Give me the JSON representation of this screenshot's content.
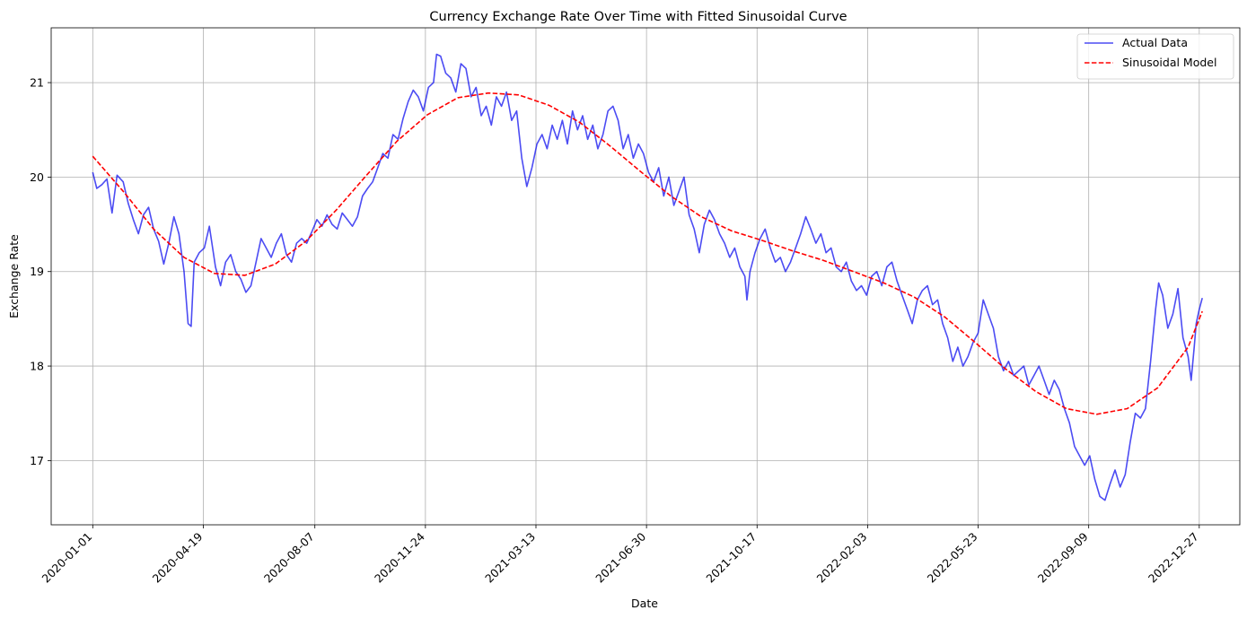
{
  "chart_data": {
    "type": "line",
    "title": "Currency Exchange Rate Over Time with Fitted Sinusoidal Curve",
    "xlabel": "Date",
    "ylabel": "Exchange Rate",
    "x_type": "date",
    "xlim": [
      "2019-11-21",
      "2023-02-05"
    ],
    "ylim": [
      16.32,
      21.58
    ],
    "x_ticks": [
      "2020-01-01",
      "2020-04-19",
      "2020-08-07",
      "2020-11-24",
      "2021-03-13",
      "2021-06-30",
      "2021-10-17",
      "2022-02-03",
      "2022-05-23",
      "2022-09-09",
      "2022-12-27"
    ],
    "y_ticks": [
      17,
      18,
      19,
      20,
      21
    ],
    "grid": true,
    "legend": "top-right",
    "series": [
      {
        "name": "Actual Data",
        "style": "solid",
        "color": "#0000ee",
        "opacity": 0.7,
        "points": [
          [
            "2020-01-01",
            20.05
          ],
          [
            "2020-01-05",
            19.88
          ],
          [
            "2020-01-10",
            19.92
          ],
          [
            "2020-01-15",
            19.98
          ],
          [
            "2020-01-20",
            19.62
          ],
          [
            "2020-01-25",
            20.02
          ],
          [
            "2020-01-31",
            19.95
          ],
          [
            "2020-02-05",
            19.72
          ],
          [
            "2020-02-10",
            19.55
          ],
          [
            "2020-02-15",
            19.4
          ],
          [
            "2020-02-20",
            19.6
          ],
          [
            "2020-02-25",
            19.68
          ],
          [
            "2020-03-01",
            19.45
          ],
          [
            "2020-03-06",
            19.32
          ],
          [
            "2020-03-11",
            19.08
          ],
          [
            "2020-03-16",
            19.3
          ],
          [
            "2020-03-21",
            19.58
          ],
          [
            "2020-03-26",
            19.4
          ],
          [
            "2020-03-31",
            19.0
          ],
          [
            "2020-04-04",
            18.45
          ],
          [
            "2020-04-07",
            18.42
          ],
          [
            "2020-04-10",
            19.1
          ],
          [
            "2020-04-15",
            19.2
          ],
          [
            "2020-04-20",
            19.25
          ],
          [
            "2020-04-25",
            19.48
          ],
          [
            "2020-05-01",
            19.05
          ],
          [
            "2020-05-06",
            18.85
          ],
          [
            "2020-05-11",
            19.1
          ],
          [
            "2020-05-16",
            19.18
          ],
          [
            "2020-05-21",
            19.0
          ],
          [
            "2020-05-26",
            18.92
          ],
          [
            "2020-05-31",
            18.78
          ],
          [
            "2020-06-05",
            18.85
          ],
          [
            "2020-06-10",
            19.1
          ],
          [
            "2020-06-15",
            19.35
          ],
          [
            "2020-06-20",
            19.25
          ],
          [
            "2020-06-25",
            19.15
          ],
          [
            "2020-06-30",
            19.3
          ],
          [
            "2020-07-05",
            19.4
          ],
          [
            "2020-07-10",
            19.18
          ],
          [
            "2020-07-15",
            19.1
          ],
          [
            "2020-07-20",
            19.3
          ],
          [
            "2020-07-25",
            19.35
          ],
          [
            "2020-07-30",
            19.3
          ],
          [
            "2020-08-04",
            19.42
          ],
          [
            "2020-08-09",
            19.55
          ],
          [
            "2020-08-14",
            19.48
          ],
          [
            "2020-08-19",
            19.6
          ],
          [
            "2020-08-24",
            19.5
          ],
          [
            "2020-08-29",
            19.45
          ],
          [
            "2020-09-03",
            19.62
          ],
          [
            "2020-09-08",
            19.55
          ],
          [
            "2020-09-13",
            19.48
          ],
          [
            "2020-09-18",
            19.58
          ],
          [
            "2020-09-23",
            19.8
          ],
          [
            "2020-09-28",
            19.88
          ],
          [
            "2020-10-03",
            19.95
          ],
          [
            "2020-10-08",
            20.1
          ],
          [
            "2020-10-13",
            20.25
          ],
          [
            "2020-10-18",
            20.2
          ],
          [
            "2020-10-23",
            20.45
          ],
          [
            "2020-10-28",
            20.4
          ],
          [
            "2020-11-02",
            20.62
          ],
          [
            "2020-11-07",
            20.8
          ],
          [
            "2020-11-12",
            20.92
          ],
          [
            "2020-11-17",
            20.85
          ],
          [
            "2020-11-22",
            20.7
          ],
          [
            "2020-11-27",
            20.95
          ],
          [
            "2020-12-02",
            21.0
          ],
          [
            "2020-12-05",
            21.3
          ],
          [
            "2020-12-09",
            21.28
          ],
          [
            "2020-12-14",
            21.1
          ],
          [
            "2020-12-19",
            21.05
          ],
          [
            "2020-12-24",
            20.9
          ],
          [
            "2020-12-29",
            21.2
          ],
          [
            "2021-01-03",
            21.15
          ],
          [
            "2021-01-08",
            20.85
          ],
          [
            "2021-01-13",
            20.95
          ],
          [
            "2021-01-18",
            20.65
          ],
          [
            "2021-01-23",
            20.75
          ],
          [
            "2021-01-28",
            20.55
          ],
          [
            "2021-02-02",
            20.85
          ],
          [
            "2021-02-07",
            20.75
          ],
          [
            "2021-02-12",
            20.9
          ],
          [
            "2021-02-17",
            20.6
          ],
          [
            "2021-02-22",
            20.7
          ],
          [
            "2021-02-27",
            20.2
          ],
          [
            "2021-03-04",
            19.9
          ],
          [
            "2021-03-09",
            20.1
          ],
          [
            "2021-03-14",
            20.35
          ],
          [
            "2021-03-19",
            20.45
          ],
          [
            "2021-03-24",
            20.3
          ],
          [
            "2021-03-29",
            20.55
          ],
          [
            "2021-04-03",
            20.4
          ],
          [
            "2021-04-08",
            20.6
          ],
          [
            "2021-04-13",
            20.35
          ],
          [
            "2021-04-18",
            20.7
          ],
          [
            "2021-04-23",
            20.5
          ],
          [
            "2021-04-28",
            20.65
          ],
          [
            "2021-05-03",
            20.4
          ],
          [
            "2021-05-08",
            20.55
          ],
          [
            "2021-05-13",
            20.3
          ],
          [
            "2021-05-18",
            20.45
          ],
          [
            "2021-05-23",
            20.7
          ],
          [
            "2021-05-28",
            20.75
          ],
          [
            "2021-06-02",
            20.6
          ],
          [
            "2021-06-07",
            20.3
          ],
          [
            "2021-06-12",
            20.45
          ],
          [
            "2021-06-17",
            20.2
          ],
          [
            "2021-06-22",
            20.35
          ],
          [
            "2021-06-27",
            20.25
          ],
          [
            "2021-07-02",
            20.05
          ],
          [
            "2021-07-07",
            19.95
          ],
          [
            "2021-07-12",
            20.1
          ],
          [
            "2021-07-17",
            19.8
          ],
          [
            "2021-07-22",
            20.0
          ],
          [
            "2021-07-27",
            19.7
          ],
          [
            "2021-08-01",
            19.85
          ],
          [
            "2021-08-06",
            20.0
          ],
          [
            "2021-08-11",
            19.6
          ],
          [
            "2021-08-16",
            19.45
          ],
          [
            "2021-08-21",
            19.2
          ],
          [
            "2021-08-26",
            19.5
          ],
          [
            "2021-08-31",
            19.65
          ],
          [
            "2021-09-05",
            19.55
          ],
          [
            "2021-09-10",
            19.4
          ],
          [
            "2021-09-15",
            19.3
          ],
          [
            "2021-09-20",
            19.15
          ],
          [
            "2021-09-25",
            19.25
          ],
          [
            "2021-09-30",
            19.05
          ],
          [
            "2021-10-05",
            18.95
          ],
          [
            "2021-10-07",
            18.7
          ],
          [
            "2021-10-10",
            19.0
          ],
          [
            "2021-10-15",
            19.2
          ],
          [
            "2021-10-20",
            19.35
          ],
          [
            "2021-10-25",
            19.45
          ],
          [
            "2021-10-30",
            19.25
          ],
          [
            "2021-11-04",
            19.1
          ],
          [
            "2021-11-09",
            19.15
          ],
          [
            "2021-11-14",
            19.0
          ],
          [
            "2021-11-19",
            19.1
          ],
          [
            "2021-11-24",
            19.25
          ],
          [
            "2021-11-29",
            19.4
          ],
          [
            "2021-12-04",
            19.58
          ],
          [
            "2021-12-09",
            19.45
          ],
          [
            "2021-12-14",
            19.3
          ],
          [
            "2021-12-19",
            19.4
          ],
          [
            "2021-12-24",
            19.2
          ],
          [
            "2021-12-29",
            19.25
          ],
          [
            "2022-01-03",
            19.05
          ],
          [
            "2022-01-08",
            19.0
          ],
          [
            "2022-01-13",
            19.1
          ],
          [
            "2022-01-18",
            18.9
          ],
          [
            "2022-01-23",
            18.8
          ],
          [
            "2022-01-28",
            18.85
          ],
          [
            "2022-02-02",
            18.75
          ],
          [
            "2022-02-07",
            18.95
          ],
          [
            "2022-02-12",
            19.0
          ],
          [
            "2022-02-17",
            18.85
          ],
          [
            "2022-02-22",
            19.05
          ],
          [
            "2022-02-27",
            19.1
          ],
          [
            "2022-03-04",
            18.9
          ],
          [
            "2022-03-09",
            18.75
          ],
          [
            "2022-03-14",
            18.6
          ],
          [
            "2022-03-19",
            18.45
          ],
          [
            "2022-03-24",
            18.7
          ],
          [
            "2022-03-29",
            18.8
          ],
          [
            "2022-04-03",
            18.85
          ],
          [
            "2022-04-08",
            18.65
          ],
          [
            "2022-04-13",
            18.7
          ],
          [
            "2022-04-18",
            18.45
          ],
          [
            "2022-04-23",
            18.3
          ],
          [
            "2022-04-28",
            18.05
          ],
          [
            "2022-05-03",
            18.2
          ],
          [
            "2022-05-08",
            18.0
          ],
          [
            "2022-05-13",
            18.1
          ],
          [
            "2022-05-18",
            18.25
          ],
          [
            "2022-05-23",
            18.35
          ],
          [
            "2022-05-28",
            18.7
          ],
          [
            "2022-06-02",
            18.55
          ],
          [
            "2022-06-07",
            18.4
          ],
          [
            "2022-06-12",
            18.1
          ],
          [
            "2022-06-17",
            17.95
          ],
          [
            "2022-06-22",
            18.05
          ],
          [
            "2022-06-27",
            17.9
          ],
          [
            "2022-07-02",
            17.95
          ],
          [
            "2022-07-07",
            18.0
          ],
          [
            "2022-07-12",
            17.8
          ],
          [
            "2022-07-17",
            17.9
          ],
          [
            "2022-07-22",
            18.0
          ],
          [
            "2022-07-27",
            17.85
          ],
          [
            "2022-08-01",
            17.7
          ],
          [
            "2022-08-06",
            17.85
          ],
          [
            "2022-08-11",
            17.75
          ],
          [
            "2022-08-16",
            17.55
          ],
          [
            "2022-08-21",
            17.4
          ],
          [
            "2022-08-26",
            17.15
          ],
          [
            "2022-08-31",
            17.05
          ],
          [
            "2022-09-05",
            16.95
          ],
          [
            "2022-09-10",
            17.05
          ],
          [
            "2022-09-15",
            16.8
          ],
          [
            "2022-09-20",
            16.62
          ],
          [
            "2022-09-25",
            16.58
          ],
          [
            "2022-09-30",
            16.75
          ],
          [
            "2022-10-05",
            16.9
          ],
          [
            "2022-10-10",
            16.72
          ],
          [
            "2022-10-15",
            16.85
          ],
          [
            "2022-10-20",
            17.2
          ],
          [
            "2022-10-25",
            17.5
          ],
          [
            "2022-10-30",
            17.45
          ],
          [
            "2022-11-04",
            17.55
          ],
          [
            "2022-11-09",
            18.05
          ],
          [
            "2022-11-14",
            18.6
          ],
          [
            "2022-11-17",
            18.88
          ],
          [
            "2022-11-21",
            18.75
          ],
          [
            "2022-11-26",
            18.4
          ],
          [
            "2022-12-01",
            18.55
          ],
          [
            "2022-12-06",
            18.82
          ],
          [
            "2022-12-11",
            18.3
          ],
          [
            "2022-12-16",
            18.1
          ],
          [
            "2022-12-19",
            17.85
          ],
          [
            "2022-12-22",
            18.2
          ],
          [
            "2022-12-24",
            18.45
          ],
          [
            "2022-12-27",
            18.6
          ],
          [
            "2022-12-30",
            18.72
          ]
        ]
      },
      {
        "name": "Sinusoidal Model",
        "style": "dashed",
        "color": "#ff0000",
        "points": [
          [
            "2020-01-01",
            20.22
          ],
          [
            "2020-01-31",
            19.85
          ],
          [
            "2020-03-01",
            19.45
          ],
          [
            "2020-03-31",
            19.15
          ],
          [
            "2020-04-30",
            18.98
          ],
          [
            "2020-05-30",
            18.96
          ],
          [
            "2020-06-29",
            19.08
          ],
          [
            "2020-07-29",
            19.32
          ],
          [
            "2020-08-28",
            19.65
          ],
          [
            "2020-09-27",
            20.02
          ],
          [
            "2020-10-27",
            20.38
          ],
          [
            "2020-11-26",
            20.66
          ],
          [
            "2020-12-26",
            20.84
          ],
          [
            "2021-01-25",
            20.89
          ],
          [
            "2021-02-24",
            20.87
          ],
          [
            "2021-03-26",
            20.76
          ],
          [
            "2021-04-25",
            20.58
          ],
          [
            "2021-05-25",
            20.33
          ],
          [
            "2021-06-24",
            20.06
          ],
          [
            "2021-07-24",
            19.8
          ],
          [
            "2021-08-23",
            19.58
          ],
          [
            "2021-09-22",
            19.43
          ],
          [
            "2021-10-22",
            19.33
          ],
          [
            "2021-11-21",
            19.22
          ],
          [
            "2021-12-21",
            19.12
          ],
          [
            "2022-01-20",
            19.0
          ],
          [
            "2022-02-19",
            18.88
          ],
          [
            "2022-03-21",
            18.73
          ],
          [
            "2022-04-20",
            18.52
          ],
          [
            "2022-05-20",
            18.25
          ],
          [
            "2022-06-19",
            17.97
          ],
          [
            "2022-07-19",
            17.73
          ],
          [
            "2022-08-18",
            17.55
          ],
          [
            "2022-09-17",
            17.49
          ],
          [
            "2022-10-17",
            17.55
          ],
          [
            "2022-11-16",
            17.77
          ],
          [
            "2022-12-16",
            18.2
          ],
          [
            "2022-12-30",
            18.58
          ]
        ]
      }
    ]
  }
}
